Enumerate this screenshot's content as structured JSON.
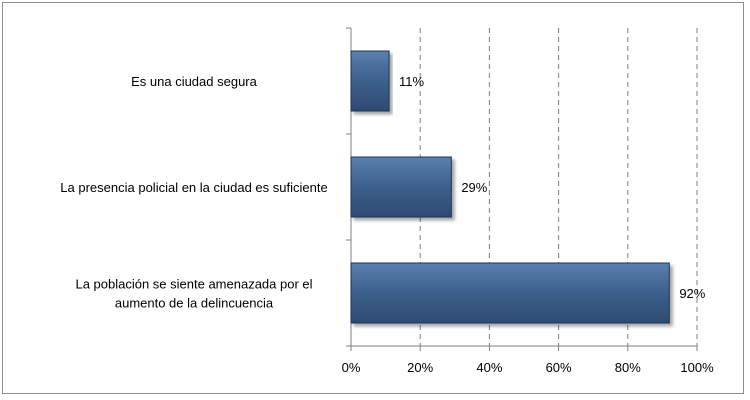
{
  "chart_data": {
    "type": "bar",
    "orientation": "horizontal",
    "categories": [
      [
        "Es una ciudad segura"
      ],
      [
        "La presencia policial en la ciudad es suficiente"
      ],
      [
        "La población  se siente amenazada por  el",
        "aumento de  la delincuencia"
      ]
    ],
    "values": [
      11,
      29,
      92
    ],
    "data_labels": [
      "11%",
      "29%",
      "92%"
    ],
    "xlim": [
      0,
      100
    ],
    "x_ticks": [
      0,
      20,
      40,
      60,
      80,
      100
    ],
    "x_tick_labels": [
      "0%",
      "20%",
      "40%",
      "60%",
      "80%",
      "100%"
    ],
    "grid": "vertical-dashed",
    "legend": "none",
    "bar_color": "#3C5F8C",
    "bar_edge_color": "#1F3550"
  }
}
